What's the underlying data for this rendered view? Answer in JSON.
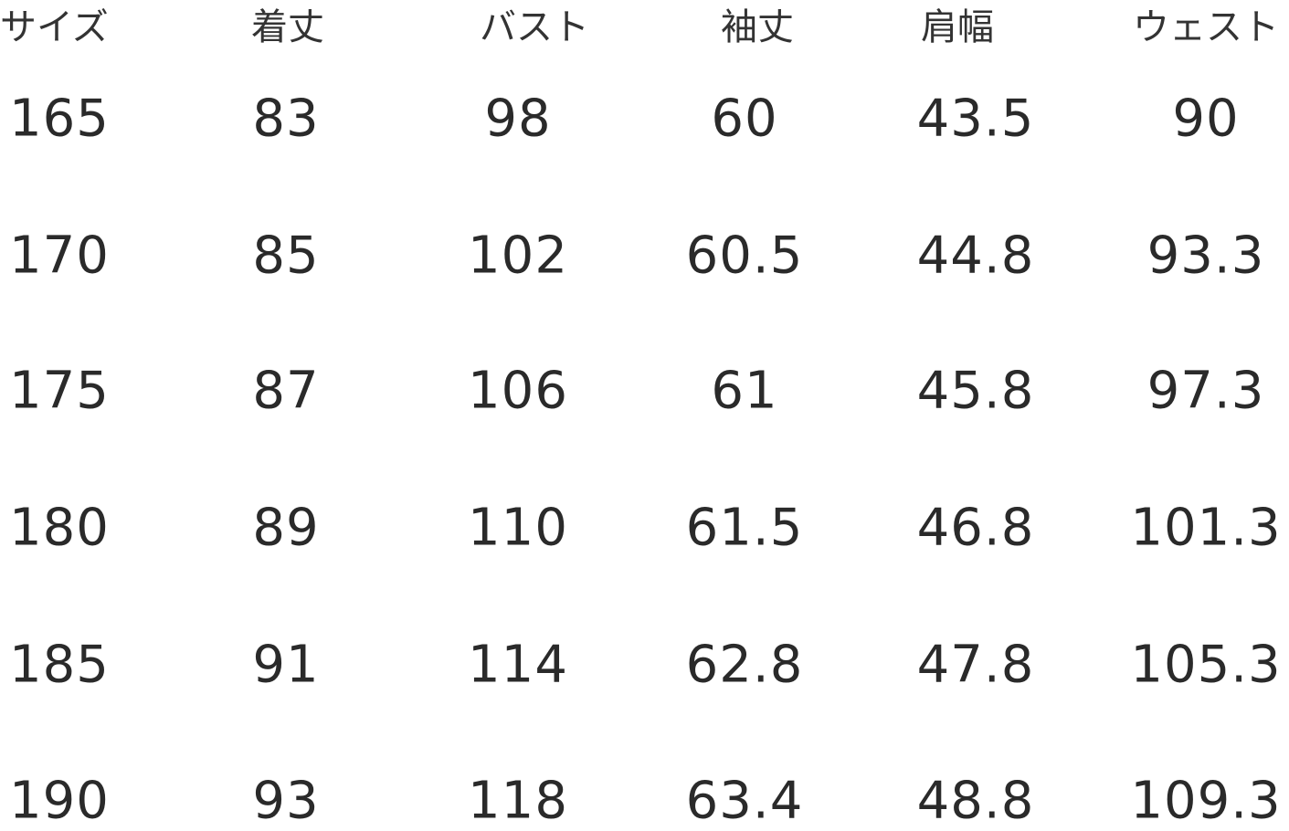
{
  "table": {
    "headers": [
      "サイズ",
      "着丈",
      "バスト",
      "袖丈",
      "肩幅",
      "ウェスト"
    ],
    "rows": [
      [
        "165",
        "83",
        "98",
        "60",
        "43.5",
        "90"
      ],
      [
        "170",
        "85",
        "102",
        "60.5",
        "44.8",
        "93.3"
      ],
      [
        "175",
        "87",
        "106",
        "61",
        "45.8",
        "97.3"
      ],
      [
        "180",
        "89",
        "110",
        "61.5",
        "46.8",
        "101.3"
      ],
      [
        "185",
        "91",
        "114",
        "62.8",
        "47.8",
        "105.3"
      ],
      [
        "190",
        "93",
        "118",
        "63.4",
        "48.8",
        "109.3"
      ]
    ]
  }
}
